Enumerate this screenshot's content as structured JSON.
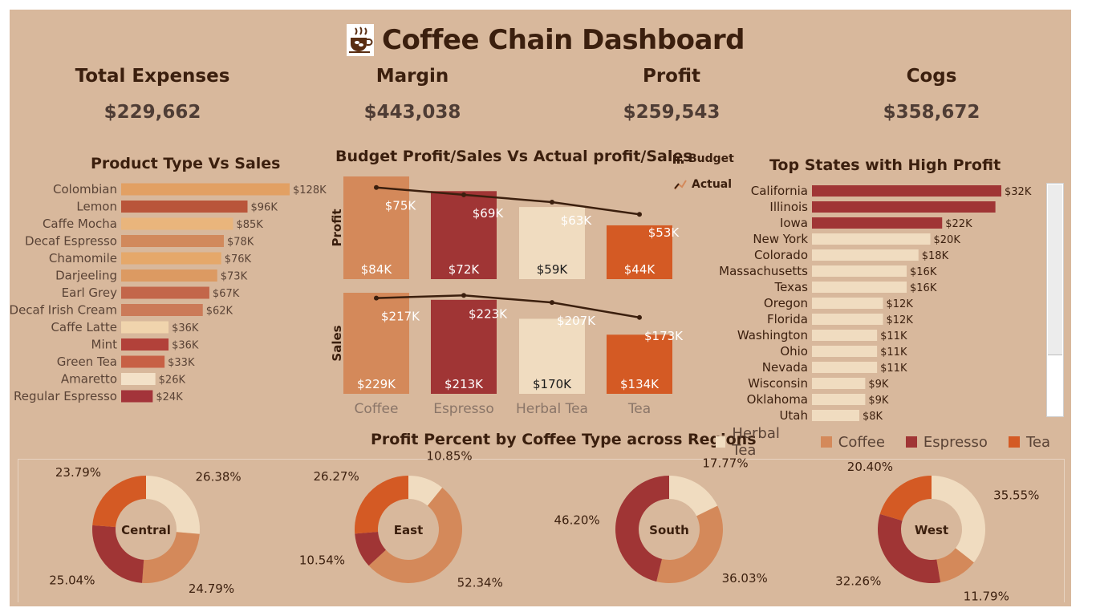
{
  "title": "Coffee Chain Dashboard",
  "kpis": [
    {
      "label": "Total Expenses",
      "value": "$229,662"
    },
    {
      "label": "Margin",
      "value": "$443,038"
    },
    {
      "label": "Profit",
      "value": "$259,543"
    },
    {
      "label": "Cogs",
      "value": "$358,672"
    }
  ],
  "colors": {
    "herbal_tea": "#f0dcc0",
    "coffee": "#d4895a",
    "espresso": "#a03535",
    "tea": "#d45a24",
    "text_dark": "#3b1f0e",
    "text_muted": "#5a4336",
    "background": "#d8b89c"
  },
  "chart_data": [
    {
      "type": "bar",
      "orientation": "horizontal",
      "title": "Product Type Vs Sales",
      "categories": [
        "Colombian",
        "Lemon",
        "Caffe Mocha",
        "Decaf Espresso",
        "Chamomile",
        "Darjeeling",
        "Earl Grey",
        "Decaf Irish Cream",
        "Caffe Latte",
        "Mint",
        "Green Tea",
        "Amaretto",
        "Regular Espresso"
      ],
      "values": [
        128,
        96,
        85,
        78,
        76,
        73,
        67,
        62,
        36,
        36,
        33,
        26,
        24
      ],
      "labels": [
        "$128K",
        "$96K",
        "$85K",
        "$78K",
        "$76K",
        "$73K",
        "$67K",
        "$62K",
        "$36K",
        "$36K",
        "$33K",
        "$26K",
        "$24K"
      ],
      "colors": [
        "#e2a063",
        "#b9553a",
        "#e9b57c",
        "#d1895c",
        "#e5a86a",
        "#dc9a62",
        "#c3664a",
        "#cb7a58",
        "#f0d4ad",
        "#b2413a",
        "#c76045",
        "#f3e1c8",
        "#a3343a"
      ],
      "unit": "K"
    },
    {
      "type": "bar",
      "title": "Budget Profit/Sales Vs Actual profit/Sales",
      "categories": [
        "Coffee",
        "Espresso",
        "Herbal Tea",
        "Tea"
      ],
      "legend": {
        "bar": "Budget",
        "line": "Actual",
        "position": "top-right"
      },
      "panels": [
        {
          "ylabel": "Profit",
          "budget": [
            84,
            72,
            59,
            44
          ],
          "budget_labels": [
            "$84K",
            "$72K",
            "$59K",
            "$44K"
          ],
          "actual": [
            75,
            69,
            63,
            53
          ],
          "actual_labels": [
            "$75K",
            "$69K",
            "$63K",
            "$53K"
          ]
        },
        {
          "ylabel": "Sales",
          "budget": [
            229,
            213,
            170,
            134
          ],
          "budget_labels": [
            "$229K",
            "$213K",
            "$170K",
            "$134K"
          ],
          "actual": [
            217,
            223,
            207,
            173
          ],
          "actual_labels": [
            "$217K",
            "$223K",
            "$207K",
            "$173K"
          ]
        }
      ],
      "bar_colors": [
        "#d4895a",
        "#a03535",
        "#f0dcc0",
        "#d45a24"
      ]
    },
    {
      "type": "bar",
      "orientation": "horizontal",
      "title": "Top States with High Profit",
      "categories": [
        "California",
        "Illinois",
        "Iowa",
        "New York",
        "Colorado",
        "Massachusetts",
        "Texas",
        "Oregon",
        "Florida",
        "Washington",
        "Ohio",
        "Nevada",
        "Wisconsin",
        "Oklahoma",
        "Utah"
      ],
      "values": [
        32,
        31,
        22,
        20,
        18,
        16,
        16,
        12,
        12,
        11,
        11,
        11,
        9,
        9,
        8
      ],
      "labels": [
        "$32K",
        "",
        "$22K",
        "$20K",
        "$18K",
        "$16K",
        "$16K",
        "$12K",
        "$12K",
        "$11K",
        "$11K",
        "$11K",
        "$9K",
        "$9K",
        "$8K"
      ],
      "colors": [
        "#a03535",
        "#a03535",
        "#a03535",
        "#f0dcc0",
        "#f0dcc0",
        "#f0dcc0",
        "#f0dcc0",
        "#f0dcc0",
        "#f0dcc0",
        "#f0dcc0",
        "#f0dcc0",
        "#f0dcc0",
        "#f0dcc0",
        "#f0dcc0",
        "#f0dcc0"
      ],
      "unit": "K"
    },
    {
      "type": "pie",
      "title": "Profit Percent by Coffee Type across Regions",
      "legend": [
        "Herbal Tea",
        "Coffee",
        "Espresso",
        "Tea"
      ],
      "regions": [
        {
          "name": "Central",
          "slices": [
            {
              "type": "Herbal Tea",
              "pct": 26.38,
              "label": "26.38%"
            },
            {
              "type": "Coffee",
              "pct": 24.79,
              "label": "24.79%"
            },
            {
              "type": "Espresso",
              "pct": 25.04,
              "label": "25.04%"
            },
            {
              "type": "Tea",
              "pct": 23.79,
              "label": "23.79%"
            }
          ]
        },
        {
          "name": "East",
          "slices": [
            {
              "type": "Herbal Tea",
              "pct": 10.85,
              "label": "10.85%"
            },
            {
              "type": "Coffee",
              "pct": 52.34,
              "label": "52.34%"
            },
            {
              "type": "Espresso",
              "pct": 10.54,
              "label": "10.54%"
            },
            {
              "type": "Tea",
              "pct": 26.27,
              "label": "26.27%"
            }
          ]
        },
        {
          "name": "South",
          "slices": [
            {
              "type": "Herbal Tea",
              "pct": 17.77,
              "label": "17.77%"
            },
            {
              "type": "Coffee",
              "pct": 36.03,
              "label": "36.03%"
            },
            {
              "type": "Espresso",
              "pct": 46.2,
              "label": "46.20%"
            }
          ]
        },
        {
          "name": "West",
          "slices": [
            {
              "type": "Herbal Tea",
              "pct": 35.55,
              "label": "35.55%"
            },
            {
              "type": "Coffee",
              "pct": 11.79,
              "label": "11.79%"
            },
            {
              "type": "Espresso",
              "pct": 32.26,
              "label": "32.26%"
            },
            {
              "type": "Tea",
              "pct": 20.4,
              "label": "20.40%"
            }
          ]
        }
      ]
    }
  ]
}
